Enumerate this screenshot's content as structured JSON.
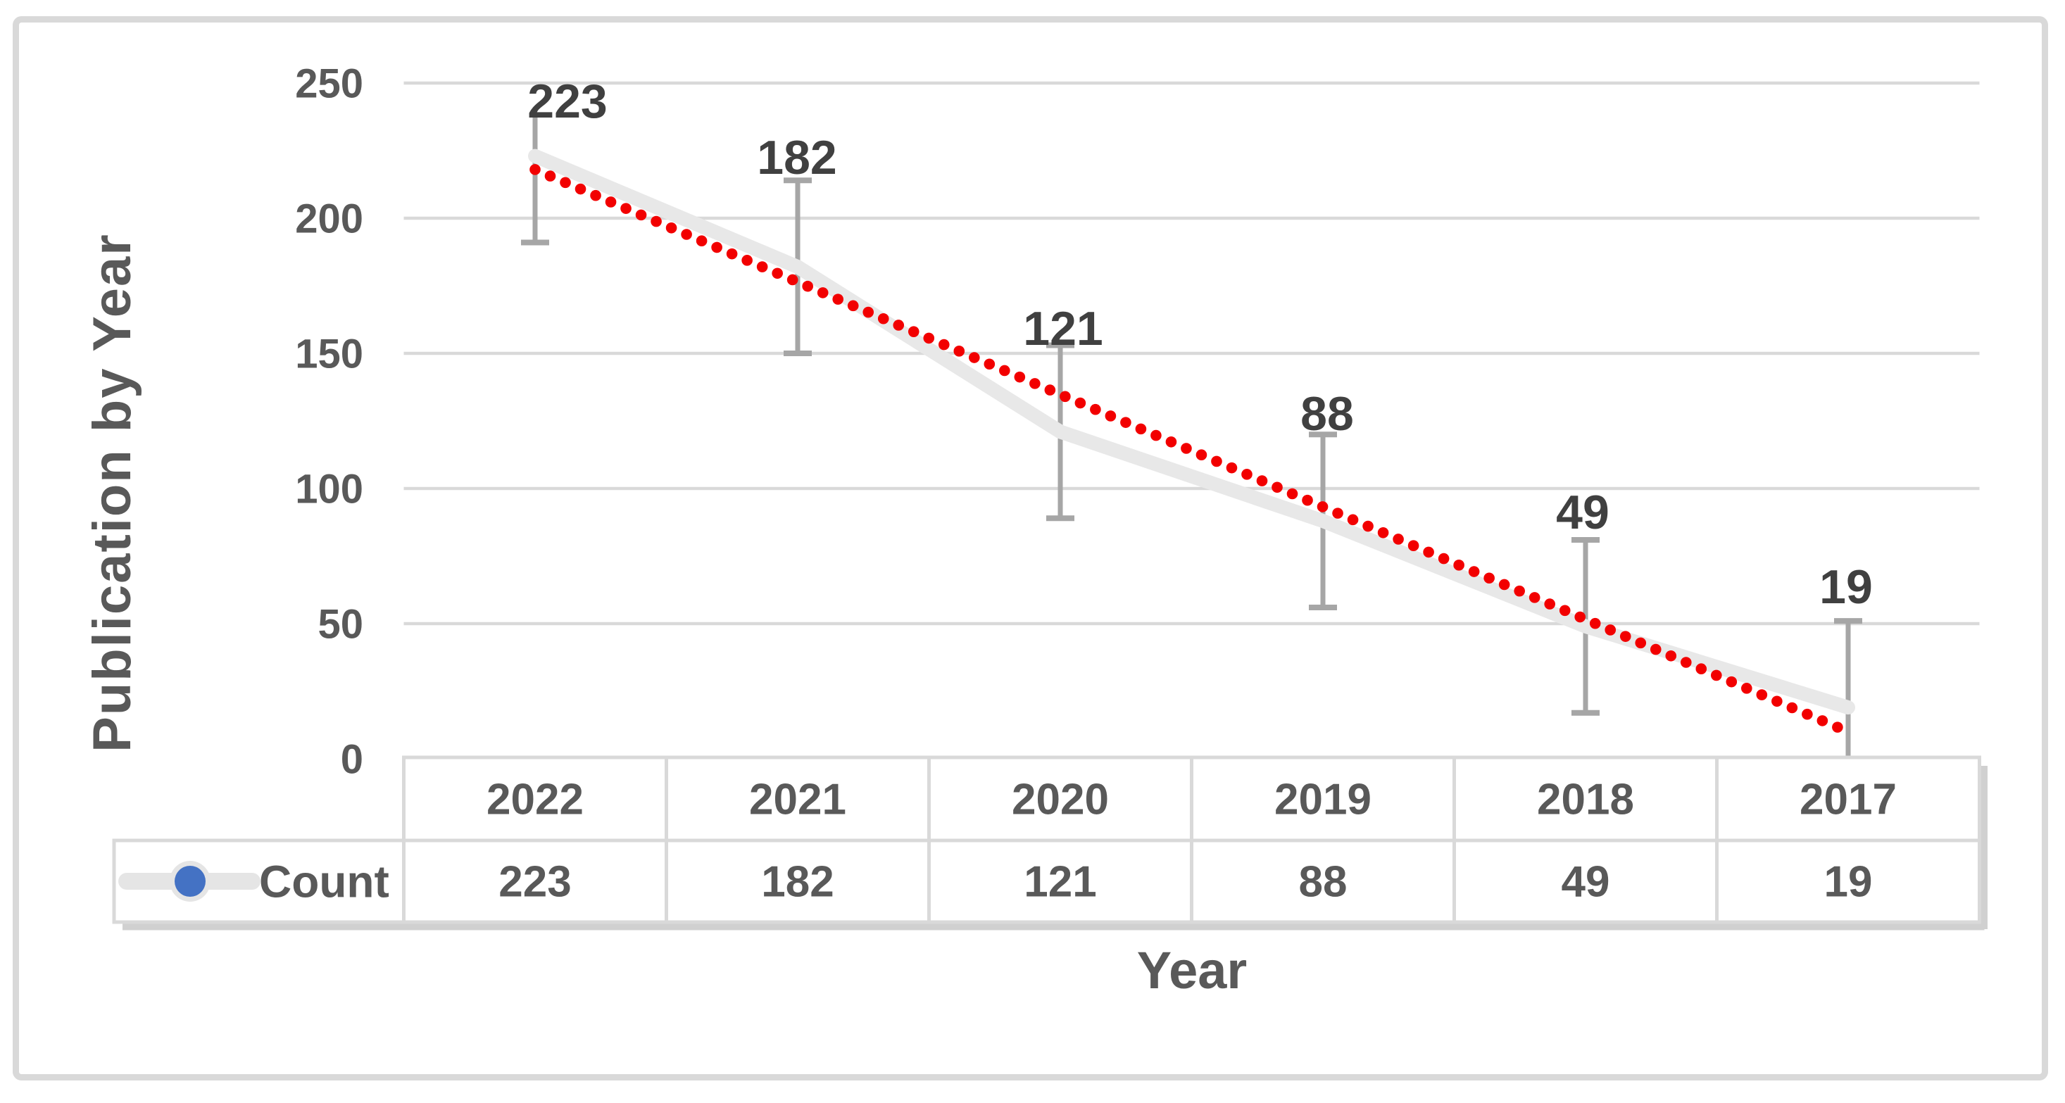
{
  "chart_data": {
    "type": "line",
    "categories": [
      "2022",
      "2021",
      "2020",
      "2019",
      "2018",
      "2017"
    ],
    "series": [
      {
        "name": "Count",
        "values": [
          223,
          182,
          121,
          88,
          49,
          19
        ]
      }
    ],
    "data_labels": [
      "223",
      "182",
      "121",
      "88",
      "49",
      "19"
    ],
    "error_bars": {
      "upper_values": [
        238,
        214,
        153,
        120,
        81,
        51
      ],
      "lower_values": [
        191,
        150,
        89,
        56,
        17,
        0
      ],
      "top_cap": [
        false,
        true,
        true,
        true,
        true,
        true
      ],
      "bottom_cap": [
        true,
        true,
        true,
        true,
        true,
        false
      ]
    },
    "trendline": {
      "type": "linear",
      "style": "dotted",
      "start_value": 218,
      "end_value": 10
    },
    "xlabel": "Year",
    "ylabel": "Publication by Year",
    "yticks": [
      "250",
      "200",
      "150",
      "100",
      "50",
      "0"
    ],
    "ytick_values": [
      250,
      200,
      150,
      100,
      50,
      0
    ],
    "ylim": [
      0,
      250
    ],
    "grid": true,
    "legend": {
      "label": "Count",
      "position": "data-table-left"
    },
    "data_table": {
      "header": [
        "2022",
        "2021",
        "2020",
        "2019",
        "2018",
        "2017"
      ],
      "rows": [
        {
          "label": "Count",
          "values": [
            "223",
            "182",
            "121",
            "88",
            "49",
            "19"
          ]
        }
      ]
    },
    "colors": {
      "series_line": "#e8e8e8",
      "trendline_dots": "#f20000",
      "error_bar": "#a6a6a6",
      "gridline": "#d9d9d9",
      "frame_border": "#d9d9d9",
      "table_border": "#d9d9d9",
      "table_shadow": "#d0d0d0",
      "tick_text": "#595959",
      "data_label_text": "#404040",
      "legend_marker_blue": "#4472c4",
      "legend_marker_line": "#e5e5e5"
    }
  }
}
